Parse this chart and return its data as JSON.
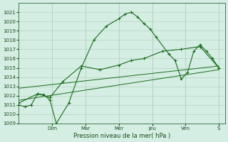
{
  "bg_color": "#d4eee4",
  "plot_bg": "#d4eee4",
  "line_color": "#1a6b1a",
  "grid_color": "#b0ccb8",
  "ylabel": "Pression niveau de la mer( hPa )",
  "ylim": [
    1009,
    1022
  ],
  "yticks": [
    1009,
    1010,
    1011,
    1012,
    1013,
    1014,
    1015,
    1016,
    1017,
    1018,
    1019,
    1020,
    1021
  ],
  "xtick_positions": [
    2.67,
    5.33,
    8.0,
    10.67,
    13.33,
    16.0
  ],
  "xtick_labels": [
    "Dim",
    "Mar",
    "Mer",
    "Jeu",
    "Ven",
    "S"
  ],
  "xlim": [
    0,
    16.5
  ],
  "line1_x": [
    0,
    0.5,
    1.0,
    1.5,
    2.0,
    2.5,
    3.0,
    4.0,
    5.0,
    6.0,
    7.0,
    8.0,
    8.5,
    9.0,
    9.5,
    10.0,
    10.5,
    11.0,
    12.0,
    12.5,
    13.0,
    13.5,
    14.0,
    14.5,
    15.0,
    15.5,
    16.0
  ],
  "line1_y": [
    1011.0,
    1010.8,
    1011.0,
    1012.2,
    1012.1,
    1011.5,
    1009.0,
    1011.2,
    1015.0,
    1018.0,
    1019.5,
    1020.3,
    1020.8,
    1021.0,
    1020.5,
    1019.8,
    1019.2,
    1018.3,
    1016.5,
    1015.8,
    1013.8,
    1014.5,
    1016.8,
    1017.5,
    1016.8,
    1016.0,
    1015.0
  ],
  "line2_x": [
    0,
    1.5,
    2.5,
    3.5,
    5.0,
    6.5,
    8.0,
    9.0,
    10.0,
    11.5,
    13.0,
    14.5,
    16.0
  ],
  "line2_y": [
    1011.2,
    1012.2,
    1011.8,
    1013.5,
    1015.2,
    1014.8,
    1015.3,
    1015.8,
    1016.0,
    1016.8,
    1017.0,
    1017.3,
    1015.0
  ],
  "trend1_x": [
    0,
    16
  ],
  "trend1_y": [
    1011.5,
    1014.8
  ],
  "trend2_x": [
    0,
    16
  ],
  "trend2_y": [
    1012.8,
    1015.2
  ],
  "title_fontsize": 5.5,
  "tick_fontsize": 5.0,
  "xlabel_fontsize": 6.0
}
